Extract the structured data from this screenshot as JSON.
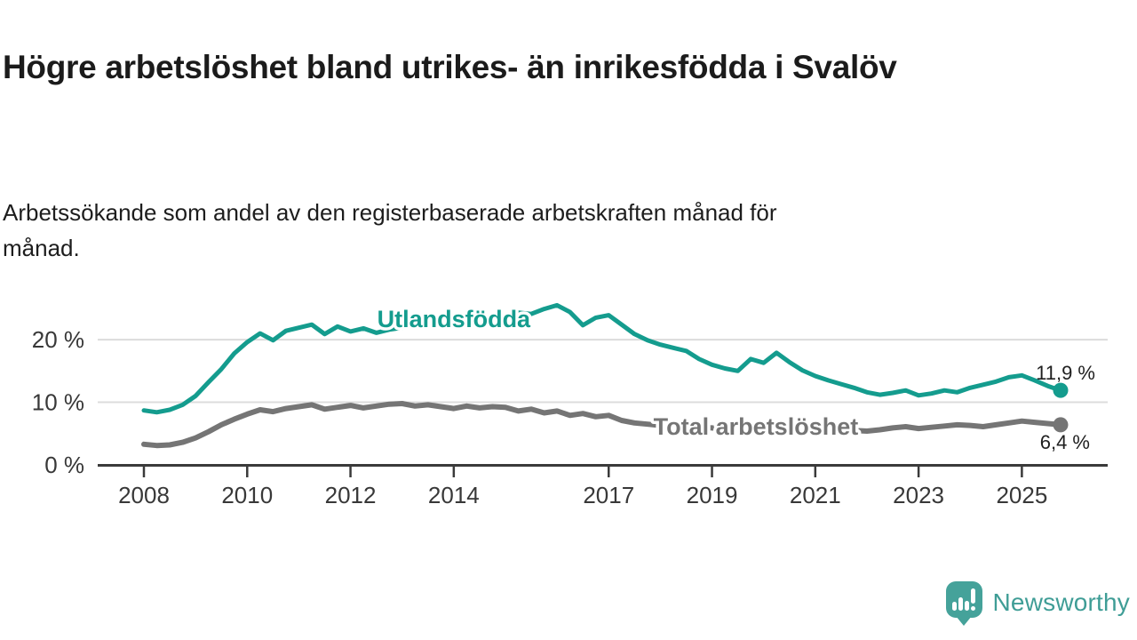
{
  "title": "Högre arbetslöshet bland utrikes- än inrikesfödda i Svalöv",
  "subtitle": "Arbetssökande som andel av den registerbaserade arbetskraften månad för månad.",
  "branding": {
    "name": "Newsworthy",
    "color": "#3f9d96",
    "icon": "newsworthy-speech-bubble-bar-chart-icon"
  },
  "chart_data": {
    "type": "line",
    "title": "Högre arbetslöshet bland utrikes- än inrikesfödda i Svalöv",
    "subtitle": "Arbetssökande som andel av den registerbaserade arbetskraften månad för månad.",
    "unit": "%",
    "x_start": 2008.0,
    "x_step": 0.25,
    "x_end": 2025.75,
    "x_ticks": [
      2008,
      2010,
      2012,
      2014,
      2017,
      2019,
      2021,
      2023,
      2025
    ],
    "y_ticks": [
      0,
      10,
      20
    ],
    "y_tick_suffix": " %",
    "y_gridlines": [
      10,
      20
    ],
    "ylim": [
      0,
      26.5
    ],
    "grid": true,
    "legend_position": "inline-labels",
    "colors": {
      "axis": "#3a3a3a",
      "grid": "#dcdcdc",
      "end_label_text": "#1f1f1f",
      "tick_text": "#383838"
    },
    "series": [
      {
        "name": "Utlandsfödda",
        "color": "#149c8e",
        "end_label": "11,9 %",
        "end_value": 11.9,
        "values": [
          8.7,
          8.4,
          8.8,
          9.6,
          11.0,
          13.2,
          15.3,
          17.8,
          19.6,
          21.0,
          19.9,
          21.4,
          21.9,
          22.4,
          20.9,
          22.1,
          21.3,
          21.8,
          21.1,
          21.6,
          21.9,
          22.3,
          22.0,
          22.6,
          22.9,
          23.3,
          23.0,
          23.7,
          23.9,
          24.3,
          24.1,
          24.9,
          25.5,
          24.4,
          22.3,
          23.5,
          23.9,
          22.4,
          20.9,
          19.9,
          19.2,
          18.7,
          18.2,
          16.9,
          16.0,
          15.4,
          15.0,
          16.9,
          16.3,
          17.9,
          16.4,
          15.1,
          14.2,
          13.5,
          12.9,
          12.3,
          11.6,
          11.2,
          11.5,
          11.9,
          11.1,
          11.4,
          11.9,
          11.6,
          12.3,
          12.8,
          13.3,
          14.0,
          14.3,
          13.5,
          12.6,
          11.9
        ]
      },
      {
        "name": "Total arbetslöshet",
        "color": "#757575",
        "end_label": "6,4 %",
        "end_value": 6.4,
        "values": [
          3.3,
          3.1,
          3.2,
          3.6,
          4.3,
          5.3,
          6.4,
          7.3,
          8.1,
          8.8,
          8.5,
          9.0,
          9.3,
          9.6,
          8.9,
          9.2,
          9.5,
          9.1,
          9.4,
          9.7,
          9.8,
          9.4,
          9.6,
          9.3,
          9.0,
          9.4,
          9.1,
          9.3,
          9.2,
          8.6,
          8.9,
          8.3,
          8.6,
          7.9,
          8.2,
          7.7,
          7.9,
          7.1,
          6.7,
          6.5,
          6.3,
          6.1,
          6.2,
          6.0,
          5.9,
          5.7,
          5.8,
          6.0,
          6.2,
          6.6,
          6.4,
          6.1,
          5.9,
          5.7,
          5.6,
          5.5,
          5.4,
          5.6,
          5.9,
          6.1,
          5.8,
          6.0,
          6.2,
          6.4,
          6.3,
          6.1,
          6.4,
          6.7,
          7.0,
          6.8,
          6.6,
          6.4
        ]
      }
    ]
  }
}
